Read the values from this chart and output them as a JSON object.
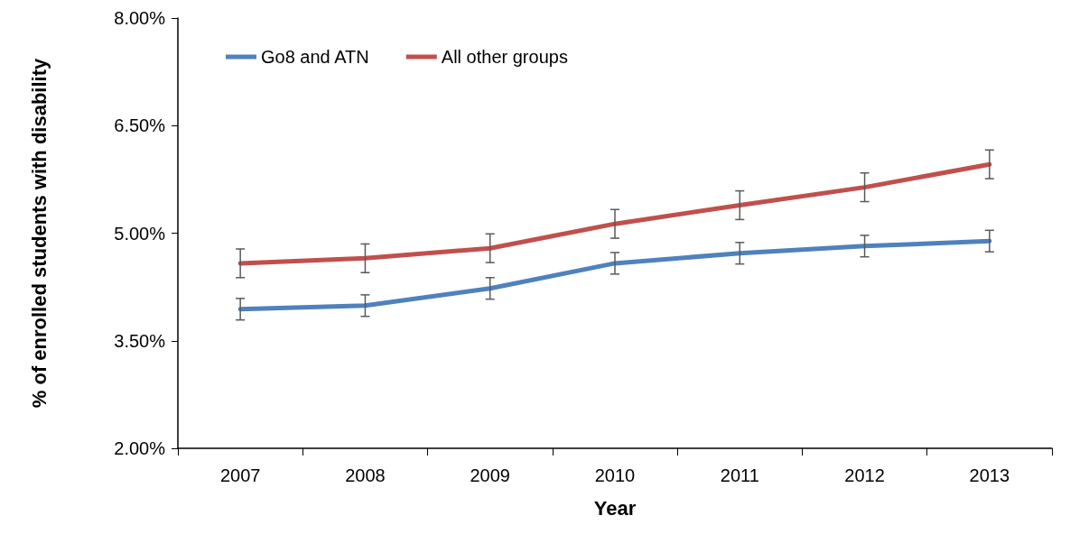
{
  "chart_data": {
    "type": "line",
    "xlabel": "Year",
    "ylabel": "% of enrolled students with disability",
    "categories": [
      "2007",
      "2008",
      "2009",
      "2010",
      "2011",
      "2012",
      "2013"
    ],
    "series": [
      {
        "name": "Go8 and ATN",
        "color": "#4f81bd",
        "values": [
          3.94,
          3.99,
          4.23,
          4.58,
          4.72,
          4.82,
          4.89
        ],
        "errors": [
          0.15,
          0.15,
          0.15,
          0.15,
          0.15,
          0.15,
          0.15
        ]
      },
      {
        "name": "All other groups",
        "color": "#c0504d",
        "values": [
          4.58,
          4.65,
          4.79,
          5.13,
          5.39,
          5.64,
          5.96
        ],
        "errors": [
          0.2,
          0.2,
          0.2,
          0.2,
          0.2,
          0.2,
          0.2
        ]
      }
    ],
    "ylim": [
      2,
      8
    ],
    "yticks": [
      {
        "value": 2,
        "label": "2.00%"
      },
      {
        "value": 3.5,
        "label": "3.50%"
      },
      {
        "value": 5,
        "label": "5.00%"
      },
      {
        "value": 6.5,
        "label": "6.50%"
      },
      {
        "value": 8,
        "label": "8.00%"
      }
    ],
    "grid": false,
    "legend": "top left",
    "marker": "none",
    "line_style": "solid"
  }
}
